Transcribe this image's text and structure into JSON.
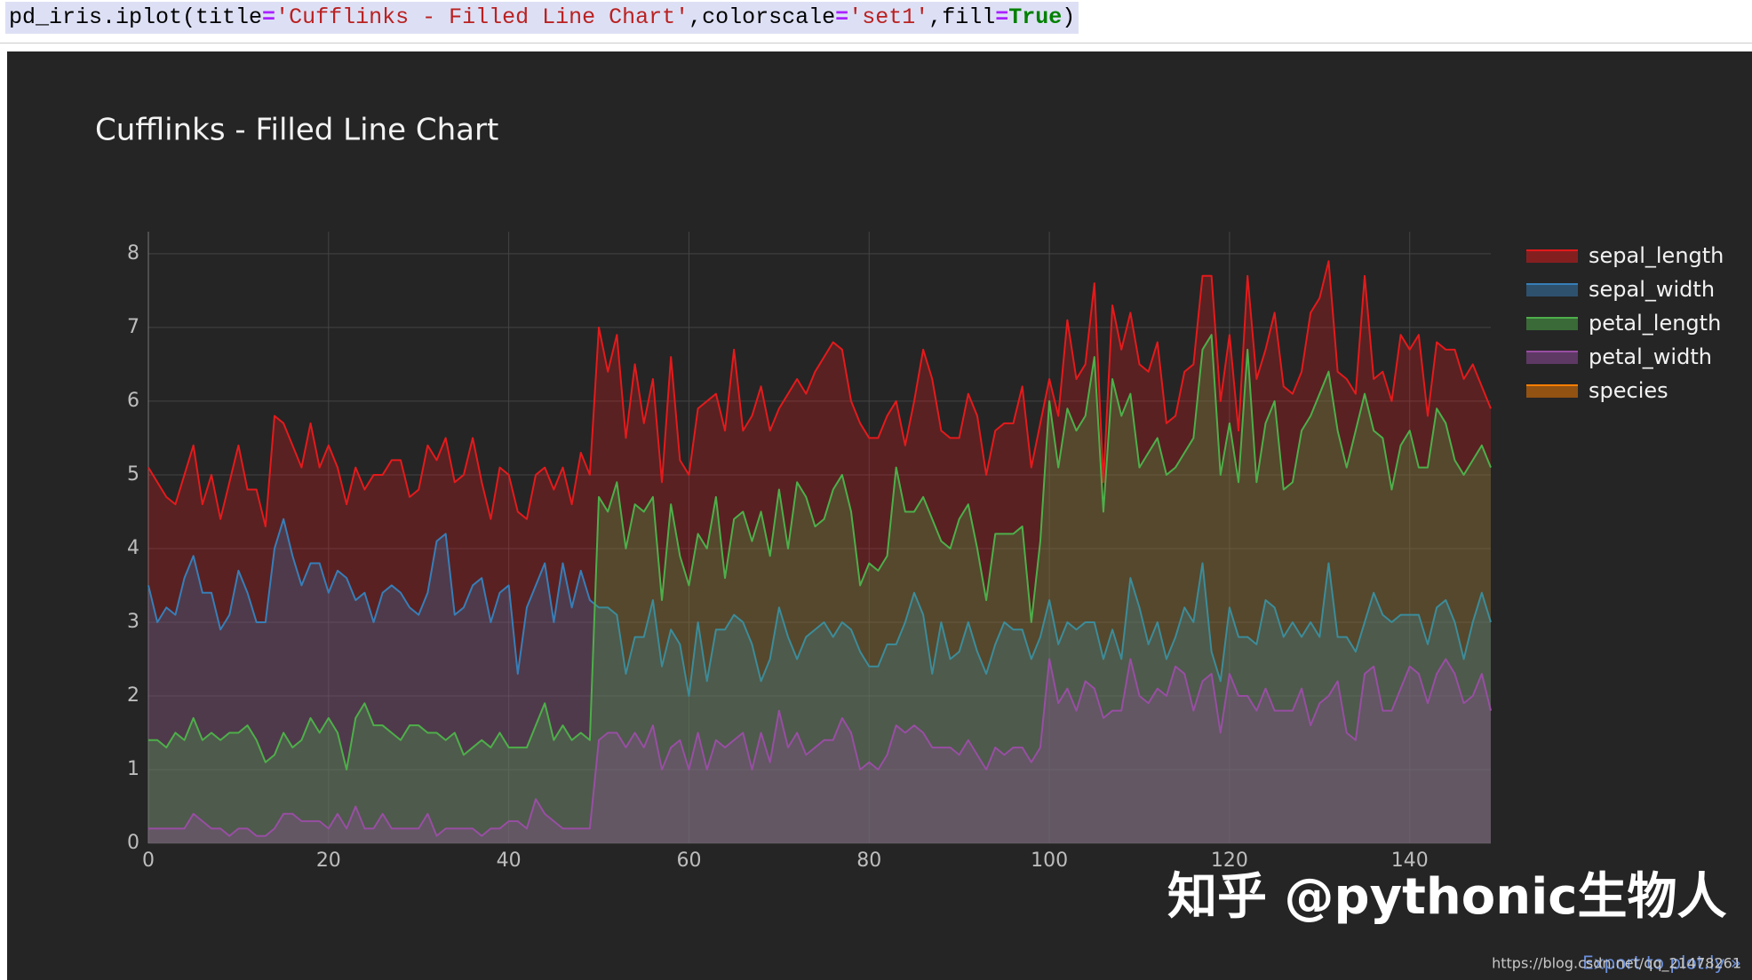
{
  "code": {
    "tokens": [
      "pd_iris.iplot(title",
      "=",
      "'Cufflinks - Filled Line Chart'",
      ",colorscale",
      "=",
      "'set1'",
      ",fill",
      "=",
      "True",
      ")"
    ]
  },
  "watermark": "知乎 @pythonic生物人",
  "source_url": "https://blog.csdn.net/qq_21478261",
  "export_link": "Export to plot.ly »",
  "chart_data": {
    "type": "line",
    "title": "Cufflinks - Filled Line Chart",
    "fill": true,
    "grid": true,
    "legend": "right",
    "x": [
      0,
      1,
      2,
      3,
      4,
      5,
      6,
      7,
      8,
      9,
      10,
      11,
      12,
      13,
      14,
      15,
      16,
      17,
      18,
      19,
      20,
      21,
      22,
      23,
      24,
      25,
      26,
      27,
      28,
      29,
      30,
      31,
      32,
      33,
      34,
      35,
      36,
      37,
      38,
      39,
      40,
      41,
      42,
      43,
      44,
      45,
      46,
      47,
      48,
      49,
      50,
      51,
      52,
      53,
      54,
      55,
      56,
      57,
      58,
      59,
      60,
      61,
      62,
      63,
      64,
      65,
      66,
      67,
      68,
      69,
      70,
      71,
      72,
      73,
      74,
      75,
      76,
      77,
      78,
      79,
      80,
      81,
      82,
      83,
      84,
      85,
      86,
      87,
      88,
      89,
      90,
      91,
      92,
      93,
      94,
      95,
      96,
      97,
      98,
      99,
      100,
      101,
      102,
      103,
      104,
      105,
      106,
      107,
      108,
      109,
      110,
      111,
      112,
      113,
      114,
      115,
      116,
      117,
      118,
      119,
      120,
      121,
      122,
      123,
      124,
      125,
      126,
      127,
      128,
      129,
      130,
      131,
      132,
      133,
      134,
      135,
      136,
      137,
      138,
      139,
      140,
      141,
      142,
      143,
      144,
      145,
      146,
      147,
      148,
      149
    ],
    "xlim": [
      0,
      149
    ],
    "xticks": [
      0,
      20,
      40,
      60,
      80,
      100,
      120,
      140
    ],
    "ylim": [
      0,
      8.3
    ],
    "yticks": [
      0,
      1,
      2,
      3,
      4,
      5,
      6,
      7,
      8
    ],
    "series": [
      {
        "name": "sepal_length",
        "color": "#e41a1c",
        "values": [
          5.1,
          4.9,
          4.7,
          4.6,
          5.0,
          5.4,
          4.6,
          5.0,
          4.4,
          4.9,
          5.4,
          4.8,
          4.8,
          4.3,
          5.8,
          5.7,
          5.4,
          5.1,
          5.7,
          5.1,
          5.4,
          5.1,
          4.6,
          5.1,
          4.8,
          5.0,
          5.0,
          5.2,
          5.2,
          4.7,
          4.8,
          5.4,
          5.2,
          5.5,
          4.9,
          5.0,
          5.5,
          4.9,
          4.4,
          5.1,
          5.0,
          4.5,
          4.4,
          5.0,
          5.1,
          4.8,
          5.1,
          4.6,
          5.3,
          5.0,
          7.0,
          6.4,
          6.9,
          5.5,
          6.5,
          5.7,
          6.3,
          4.9,
          6.6,
          5.2,
          5.0,
          5.9,
          6.0,
          6.1,
          5.6,
          6.7,
          5.6,
          5.8,
          6.2,
          5.6,
          5.9,
          6.1,
          6.3,
          6.1,
          6.4,
          6.6,
          6.8,
          6.7,
          6.0,
          5.7,
          5.5,
          5.5,
          5.8,
          6.0,
          5.4,
          6.0,
          6.7,
          6.3,
          5.6,
          5.5,
          5.5,
          6.1,
          5.8,
          5.0,
          5.6,
          5.7,
          5.7,
          6.2,
          5.1,
          5.7,
          6.3,
          5.8,
          7.1,
          6.3,
          6.5,
          7.6,
          4.9,
          7.3,
          6.7,
          7.2,
          6.5,
          6.4,
          6.8,
          5.7,
          5.8,
          6.4,
          6.5,
          7.7,
          7.7,
          6.0,
          6.9,
          5.6,
          7.7,
          6.3,
          6.7,
          7.2,
          6.2,
          6.1,
          6.4,
          7.2,
          7.4,
          7.9,
          6.4,
          6.3,
          6.1,
          7.7,
          6.3,
          6.4,
          6.0,
          6.9,
          6.7,
          6.9,
          5.8,
          6.8,
          6.7,
          6.7,
          6.3,
          6.5,
          6.2,
          5.9
        ]
      },
      {
        "name": "sepal_width",
        "color": "#377eb8",
        "values": [
          3.5,
          3.0,
          3.2,
          3.1,
          3.6,
          3.9,
          3.4,
          3.4,
          2.9,
          3.1,
          3.7,
          3.4,
          3.0,
          3.0,
          4.0,
          4.4,
          3.9,
          3.5,
          3.8,
          3.8,
          3.4,
          3.7,
          3.6,
          3.3,
          3.4,
          3.0,
          3.4,
          3.5,
          3.4,
          3.2,
          3.1,
          3.4,
          4.1,
          4.2,
          3.1,
          3.2,
          3.5,
          3.6,
          3.0,
          3.4,
          3.5,
          2.3,
          3.2,
          3.5,
          3.8,
          3.0,
          3.8,
          3.2,
          3.7,
          3.3,
          3.2,
          3.2,
          3.1,
          2.3,
          2.8,
          2.8,
          3.3,
          2.4,
          2.9,
          2.7,
          2.0,
          3.0,
          2.2,
          2.9,
          2.9,
          3.1,
          3.0,
          2.7,
          2.2,
          2.5,
          3.2,
          2.8,
          2.5,
          2.8,
          2.9,
          3.0,
          2.8,
          3.0,
          2.9,
          2.6,
          2.4,
          2.4,
          2.7,
          2.7,
          3.0,
          3.4,
          3.1,
          2.3,
          3.0,
          2.5,
          2.6,
          3.0,
          2.6,
          2.3,
          2.7,
          3.0,
          2.9,
          2.9,
          2.5,
          2.8,
          3.3,
          2.7,
          3.0,
          2.9,
          3.0,
          3.0,
          2.5,
          2.9,
          2.5,
          3.6,
          3.2,
          2.7,
          3.0,
          2.5,
          2.8,
          3.2,
          3.0,
          3.8,
          2.6,
          2.2,
          3.2,
          2.8,
          2.8,
          2.7,
          3.3,
          3.2,
          2.8,
          3.0,
          2.8,
          3.0,
          2.8,
          3.8,
          2.8,
          2.8,
          2.6,
          3.0,
          3.4,
          3.1,
          3.0,
          3.1,
          3.1,
          3.1,
          2.7,
          3.2,
          3.3,
          3.0,
          2.5,
          3.0,
          3.4,
          3.0
        ]
      },
      {
        "name": "petal_length",
        "color": "#4daf4a",
        "values": [
          1.4,
          1.4,
          1.3,
          1.5,
          1.4,
          1.7,
          1.4,
          1.5,
          1.4,
          1.5,
          1.5,
          1.6,
          1.4,
          1.1,
          1.2,
          1.5,
          1.3,
          1.4,
          1.7,
          1.5,
          1.7,
          1.5,
          1.0,
          1.7,
          1.9,
          1.6,
          1.6,
          1.5,
          1.4,
          1.6,
          1.6,
          1.5,
          1.5,
          1.4,
          1.5,
          1.2,
          1.3,
          1.4,
          1.3,
          1.5,
          1.3,
          1.3,
          1.3,
          1.6,
          1.9,
          1.4,
          1.6,
          1.4,
          1.5,
          1.4,
          4.7,
          4.5,
          4.9,
          4.0,
          4.6,
          4.5,
          4.7,
          3.3,
          4.6,
          3.9,
          3.5,
          4.2,
          4.0,
          4.7,
          3.6,
          4.4,
          4.5,
          4.1,
          4.5,
          3.9,
          4.8,
          4.0,
          4.9,
          4.7,
          4.3,
          4.4,
          4.8,
          5.0,
          4.5,
          3.5,
          3.8,
          3.7,
          3.9,
          5.1,
          4.5,
          4.5,
          4.7,
          4.4,
          4.1,
          4.0,
          4.4,
          4.6,
          4.0,
          3.3,
          4.2,
          4.2,
          4.2,
          4.3,
          3.0,
          4.1,
          6.0,
          5.1,
          5.9,
          5.6,
          5.8,
          6.6,
          4.5,
          6.3,
          5.8,
          6.1,
          5.1,
          5.3,
          5.5,
          5.0,
          5.1,
          5.3,
          5.5,
          6.7,
          6.9,
          5.0,
          5.7,
          4.9,
          6.7,
          4.9,
          5.7,
          6.0,
          4.8,
          4.9,
          5.6,
          5.8,
          6.1,
          6.4,
          5.6,
          5.1,
          5.6,
          6.1,
          5.6,
          5.5,
          4.8,
          5.4,
          5.6,
          5.1,
          5.1,
          5.9,
          5.7,
          5.2,
          5.0,
          5.2,
          5.4,
          5.1
        ]
      },
      {
        "name": "petal_width",
        "color": "#984ea3",
        "values": [
          0.2,
          0.2,
          0.2,
          0.2,
          0.2,
          0.4,
          0.3,
          0.2,
          0.2,
          0.1,
          0.2,
          0.2,
          0.1,
          0.1,
          0.2,
          0.4,
          0.4,
          0.3,
          0.3,
          0.3,
          0.2,
          0.4,
          0.2,
          0.5,
          0.2,
          0.2,
          0.4,
          0.2,
          0.2,
          0.2,
          0.2,
          0.4,
          0.1,
          0.2,
          0.2,
          0.2,
          0.2,
          0.1,
          0.2,
          0.2,
          0.3,
          0.3,
          0.2,
          0.6,
          0.4,
          0.3,
          0.2,
          0.2,
          0.2,
          0.2,
          1.4,
          1.5,
          1.5,
          1.3,
          1.5,
          1.3,
          1.6,
          1.0,
          1.3,
          1.4,
          1.0,
          1.5,
          1.0,
          1.4,
          1.3,
          1.4,
          1.5,
          1.0,
          1.5,
          1.1,
          1.8,
          1.3,
          1.5,
          1.2,
          1.3,
          1.4,
          1.4,
          1.7,
          1.5,
          1.0,
          1.1,
          1.0,
          1.2,
          1.6,
          1.5,
          1.6,
          1.5,
          1.3,
          1.3,
          1.3,
          1.2,
          1.4,
          1.2,
          1.0,
          1.3,
          1.2,
          1.3,
          1.3,
          1.1,
          1.3,
          2.5,
          1.9,
          2.1,
          1.8,
          2.2,
          2.1,
          1.7,
          1.8,
          1.8,
          2.5,
          2.0,
          1.9,
          2.1,
          2.0,
          2.4,
          2.3,
          1.8,
          2.2,
          2.3,
          1.5,
          2.3,
          2.0,
          2.0,
          1.8,
          2.1,
          1.8,
          1.8,
          1.8,
          2.1,
          1.6,
          1.9,
          2.0,
          2.2,
          1.5,
          1.4,
          2.3,
          2.4,
          1.8,
          1.8,
          2.1,
          2.4,
          2.3,
          1.9,
          2.3,
          2.5,
          2.3,
          1.9,
          2.0,
          2.3,
          1.8
        ]
      },
      {
        "name": "species",
        "color": "#ff7f00"
      }
    ]
  }
}
